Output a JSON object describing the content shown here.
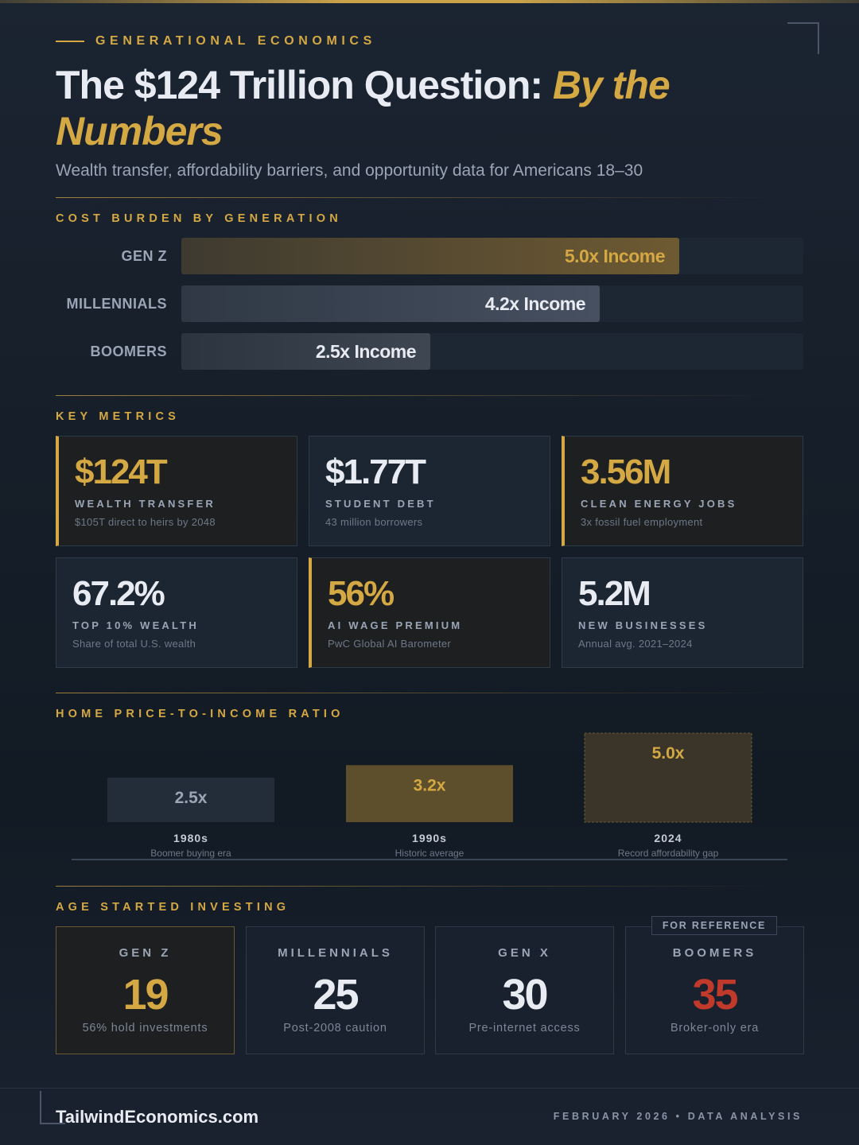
{
  "header": {
    "eyebrow": "GENERATIONAL ECONOMICS",
    "title_main": "The $124 Trillion Question: ",
    "title_accent": "By the Numbers",
    "subtitle": "Wealth transfer, affordability barriers, and opportunity data for Americans 18–30"
  },
  "sections": {
    "cost_burden": "COST BURDEN BY GENERATION",
    "key_metrics": "KEY METRICS",
    "price_income": "HOME PRICE-TO-INCOME RATIO",
    "age_investing": "AGE STARTED INVESTING"
  },
  "cost_burden": [
    {
      "generation": "GEN Z",
      "ratio": 5.0,
      "label": "5.0x Income",
      "color": "#d4a843"
    },
    {
      "generation": "MILLENNIALS",
      "ratio": 4.2,
      "label": "4.2x Income",
      "color": "#e8ecf2"
    },
    {
      "generation": "BOOMERS",
      "ratio": 2.5,
      "label": "2.5x Income",
      "color": "#e8ecf2"
    }
  ],
  "metrics": [
    {
      "value": "$124T",
      "label": "WEALTH TRANSFER",
      "sub": "$105T direct to heirs by 2048"
    },
    {
      "value": "$1.77T",
      "label": "STUDENT DEBT",
      "sub": "43 million borrowers"
    },
    {
      "value": "3.56M",
      "label": "CLEAN ENERGY JOBS",
      "sub": "3x fossil fuel employment"
    },
    {
      "value": "67.2%",
      "label": "TOP 10% WEALTH",
      "sub": "Share of total U.S. wealth"
    },
    {
      "value": "56%",
      "label": "AI WAGE PREMIUM",
      "sub": "PwC Global AI Barometer"
    },
    {
      "value": "5.2M",
      "label": "NEW BUSINESSES",
      "sub": "Annual avg. 2021–2024"
    }
  ],
  "chart_data": {
    "type": "bar",
    "categories": [
      "1980s",
      "1990s",
      "2024"
    ],
    "values": [
      2.5,
      3.2,
      5.0
    ],
    "value_labels": [
      "2.5x",
      "3.2x",
      "5.0x"
    ],
    "category_notes": [
      "Boomer buying era",
      "Historic average",
      "Record affordability gap"
    ],
    "colors": [
      "#232d3a",
      "#5e4f2c",
      "#3a3528"
    ],
    "label_colors": [
      "#9aa5b5",
      "#d4a843",
      "#d4a843"
    ],
    "title": "HOME PRICE-TO-INCOME RATIO",
    "xlabel": "",
    "ylabel": "",
    "ylim": [
      0,
      5.0
    ],
    "grid": false
  },
  "investing": [
    {
      "generation": "GEN Z",
      "age": "19",
      "note": "56% hold investments",
      "color": "#d4a843"
    },
    {
      "generation": "MILLENNIALS",
      "age": "25",
      "note": "Post-2008 caution",
      "color": "#e8ecf2"
    },
    {
      "generation": "GEN X",
      "age": "30",
      "note": "Pre-internet access",
      "color": "#e8ecf2"
    },
    {
      "generation": "BOOMERS",
      "age": "35",
      "note": "Broker-only era",
      "color": "#c0392b",
      "badge": "FOR REFERENCE"
    }
  ],
  "footer": {
    "brand": "TailwindEconomics.com",
    "date": "FEBRUARY 2026 • DATA ANALYSIS"
  },
  "colors": {
    "accent": "#d4a843",
    "background": "#161e29",
    "text": "#e8ecf2",
    "muted": "#9aa5b5",
    "alert": "#c0392b"
  }
}
